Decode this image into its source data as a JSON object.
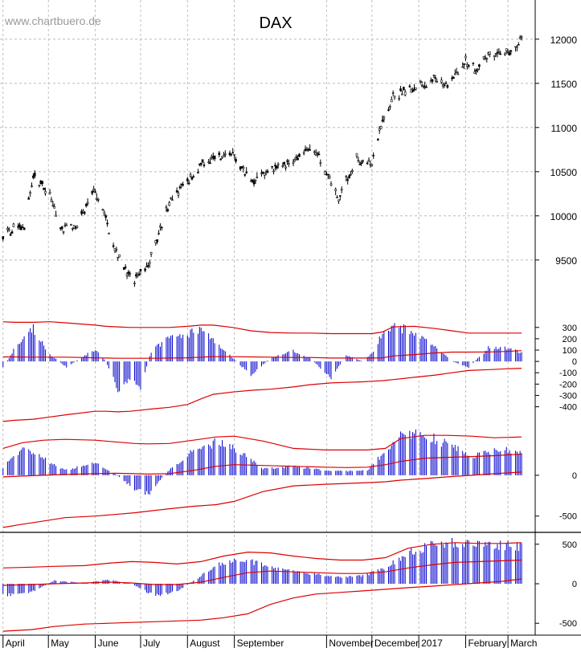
{
  "header": {
    "title": "DAX",
    "watermark": "www.chartbuero.de"
  },
  "months": [
    {
      "label": "April",
      "date": "2016-04-01"
    },
    {
      "label": "May",
      "date": "2016-05-01"
    },
    {
      "label": "June",
      "date": "2016-06-01"
    },
    {
      "label": "July",
      "date": "2016-07-01"
    },
    {
      "label": "August",
      "date": "2016-08-01"
    },
    {
      "label": "September",
      "date": "2016-09-01"
    },
    {
      "label": "November",
      "date": "2016-11-01"
    },
    {
      "label": "December",
      "date": "2016-12-01"
    },
    {
      "label": "2017",
      "date": "2017-01-01"
    },
    {
      "label": "February",
      "date": "2017-02-01"
    },
    {
      "label": "March",
      "date": "2017-03-01"
    }
  ],
  "colors": {
    "price": "#000000",
    "histogram": "#0000cc",
    "band": "#dd0000",
    "grid": "#b0b0b0"
  },
  "chart_data": [
    {
      "type": "line",
      "title": "DAX",
      "xlabel": "",
      "ylabel": "",
      "ylim": [
        9080,
        12280
      ],
      "yticks": [
        9500,
        10000,
        10500,
        11000,
        11500,
        12000
      ],
      "grid": true,
      "x": [
        "2016-04-01",
        "2016-04-15",
        "2016-04-21",
        "2016-05-02",
        "2016-05-10",
        "2016-05-20",
        "2016-06-01",
        "2016-06-10",
        "2016-06-16",
        "2016-06-24",
        "2016-06-27",
        "2016-07-06",
        "2016-07-20",
        "2016-08-01",
        "2016-08-15",
        "2016-08-31",
        "2016-09-12",
        "2016-09-25",
        "2016-10-03",
        "2016-10-14",
        "2016-10-25",
        "2016-11-04",
        "2016-11-09",
        "2016-11-21",
        "2016-12-01",
        "2016-12-07",
        "2016-12-15",
        "2016-12-29",
        "2017-01-10",
        "2017-01-20",
        "2017-02-01",
        "2017-02-08",
        "2017-02-17",
        "2017-02-28",
        "2017-03-10"
      ],
      "series": [
        {
          "values": [
            9800,
            9900,
            10450,
            10250,
            9850,
            9900,
            10300,
            9850,
            9550,
            9300,
            9250,
            9450,
            10150,
            10400,
            10650,
            10700,
            10400,
            10500,
            10550,
            10700,
            10750,
            10350,
            10200,
            10650,
            10600,
            11000,
            11350,
            11450,
            11550,
            11500,
            11750,
            11650,
            11850,
            11850,
            11990
          ]
        }
      ]
    },
    {
      "type": "bar",
      "title": "",
      "xlabel": "",
      "ylabel": "",
      "ylim": [
        -580,
        440
      ],
      "yticks": [
        300,
        200,
        100,
        0,
        -100,
        -200,
        -300,
        -400
      ],
      "grid": false,
      "x": [
        "2016-04-01",
        "2016-04-08",
        "2016-04-21",
        "2016-05-02",
        "2016-05-13",
        "2016-06-01",
        "2016-06-08",
        "2016-06-16",
        "2016-06-24",
        "2016-07-01",
        "2016-07-08",
        "2016-07-20",
        "2016-08-01",
        "2016-08-10",
        "2016-08-18",
        "2016-08-31",
        "2016-09-12",
        "2016-09-25",
        "2016-10-10",
        "2016-10-21",
        "2016-11-04",
        "2016-11-14",
        "2016-11-25",
        "2016-12-01",
        "2016-12-08",
        "2016-12-15",
        "2016-12-29",
        "2017-01-12",
        "2017-01-23",
        "2017-02-03",
        "2017-02-17",
        "2017-02-28",
        "2017-03-10"
      ],
      "series": [
        {
          "name": "histogram",
          "values": [
            -60,
            100,
            290,
            60,
            -50,
            110,
            0,
            -240,
            -160,
            -230,
            90,
            210,
            230,
            300,
            180,
            30,
            -120,
            30,
            90,
            30,
            -150,
            60,
            0,
            70,
            250,
            320,
            250,
            130,
            0,
            -50,
            130,
            120,
            80
          ]
        },
        {
          "name": "upper band",
          "values": [
            350,
            345,
            345,
            350,
            340,
            320,
            310,
            305,
            300,
            300,
            300,
            300,
            310,
            320,
            320,
            300,
            270,
            255,
            250,
            250,
            245,
            245,
            245,
            245,
            260,
            305,
            310,
            290,
            270,
            250,
            250,
            250,
            250
          ]
        },
        {
          "name": "middle line",
          "values": [
            40,
            40,
            38,
            38,
            38,
            32,
            30,
            28,
            28,
            28,
            28,
            30,
            32,
            38,
            42,
            42,
            40,
            38,
            35,
            35,
            30,
            30,
            30,
            30,
            32,
            48,
            60,
            75,
            82,
            82,
            84,
            88,
            95
          ]
        },
        {
          "name": "lower band",
          "values": [
            -530,
            -520,
            -510,
            -490,
            -470,
            -440,
            -440,
            -445,
            -440,
            -430,
            -420,
            -405,
            -380,
            -330,
            -290,
            -270,
            -255,
            -245,
            -225,
            -205,
            -190,
            -185,
            -180,
            -175,
            -170,
            -160,
            -140,
            -120,
            -100,
            -80,
            -72,
            -65,
            -60
          ]
        }
      ]
    },
    {
      "type": "bar",
      "title": "",
      "xlabel": "",
      "ylabel": "",
      "ylim": [
        -700,
        590
      ],
      "yticks": [
        0,
        -500
      ],
      "grid": false,
      "x": [
        "2016-04-01",
        "2016-04-14",
        "2016-04-28",
        "2016-05-12",
        "2016-06-01",
        "2016-06-14",
        "2016-06-27",
        "2016-07-06",
        "2016-07-20",
        "2016-08-05",
        "2016-08-20",
        "2016-09-01",
        "2016-09-20",
        "2016-10-10",
        "2016-10-31",
        "2016-11-14",
        "2016-11-28",
        "2016-12-10",
        "2016-12-20",
        "2017-01-05",
        "2017-01-20",
        "2017-02-05",
        "2017-02-20",
        "2017-03-10"
      ],
      "series": [
        {
          "name": "histogram",
          "values": [
            100,
            330,
            200,
            60,
            150,
            20,
            -170,
            -230,
            70,
            300,
            400,
            340,
            80,
            110,
            60,
            50,
            60,
            300,
            480,
            500,
            380,
            230,
            320,
            300
          ]
        },
        {
          "name": "upper band",
          "values": [
            330,
            400,
            430,
            440,
            430,
            410,
            390,
            385,
            390,
            430,
            470,
            480,
            420,
            330,
            310,
            310,
            310,
            330,
            450,
            490,
            490,
            480,
            460,
            470
          ]
        },
        {
          "name": "middle line",
          "values": [
            -20,
            -10,
            0,
            10,
            20,
            25,
            20,
            15,
            20,
            60,
            110,
            130,
            120,
            110,
            100,
            95,
            100,
            130,
            170,
            210,
            220,
            230,
            240,
            260
          ]
        },
        {
          "name": "lower band",
          "values": [
            -640,
            -600,
            -560,
            -520,
            -500,
            -480,
            -460,
            -440,
            -410,
            -380,
            -360,
            -320,
            -200,
            -130,
            -110,
            -100,
            -90,
            -80,
            -60,
            -40,
            -20,
            0,
            20,
            40
          ]
        }
      ]
    },
    {
      "type": "bar",
      "title": "",
      "xlabel": "",
      "ylabel": "",
      "ylim": [
        -650,
        650
      ],
      "yticks": [
        500,
        0,
        -500
      ],
      "grid": false,
      "x": [
        "2016-04-01",
        "2016-04-20",
        "2016-05-05",
        "2016-05-25",
        "2016-06-10",
        "2016-06-25",
        "2016-07-10",
        "2016-07-25",
        "2016-08-10",
        "2016-08-25",
        "2016-09-10",
        "2016-09-25",
        "2016-10-10",
        "2016-10-25",
        "2016-11-10",
        "2016-11-25",
        "2016-12-10",
        "2016-12-25",
        "2017-01-10",
        "2017-01-25",
        "2017-02-10",
        "2017-02-25",
        "2017-03-10"
      ],
      "series": [
        {
          "name": "histogram",
          "values": [
            -150,
            -100,
            40,
            10,
            50,
            0,
            -150,
            -100,
            100,
            280,
            300,
            200,
            150,
            120,
            80,
            100,
            200,
            400,
            500,
            520,
            480,
            480,
            480
          ]
        },
        {
          "name": "upper band",
          "values": [
            200,
            210,
            220,
            230,
            260,
            280,
            270,
            250,
            280,
            350,
            400,
            390,
            350,
            320,
            300,
            300,
            330,
            450,
            500,
            520,
            510,
            510,
            520
          ]
        },
        {
          "name": "middle line",
          "values": [
            -20,
            -10,
            0,
            10,
            20,
            10,
            -10,
            -10,
            20,
            80,
            140,
            160,
            150,
            140,
            130,
            130,
            150,
            200,
            240,
            270,
            280,
            290,
            300
          ]
        },
        {
          "name": "lower band",
          "values": [
            -600,
            -580,
            -540,
            -510,
            -500,
            -490,
            -480,
            -470,
            -460,
            -430,
            -380,
            -260,
            -180,
            -130,
            -110,
            -90,
            -70,
            -50,
            -30,
            -10,
            10,
            30,
            60
          ]
        }
      ]
    }
  ]
}
